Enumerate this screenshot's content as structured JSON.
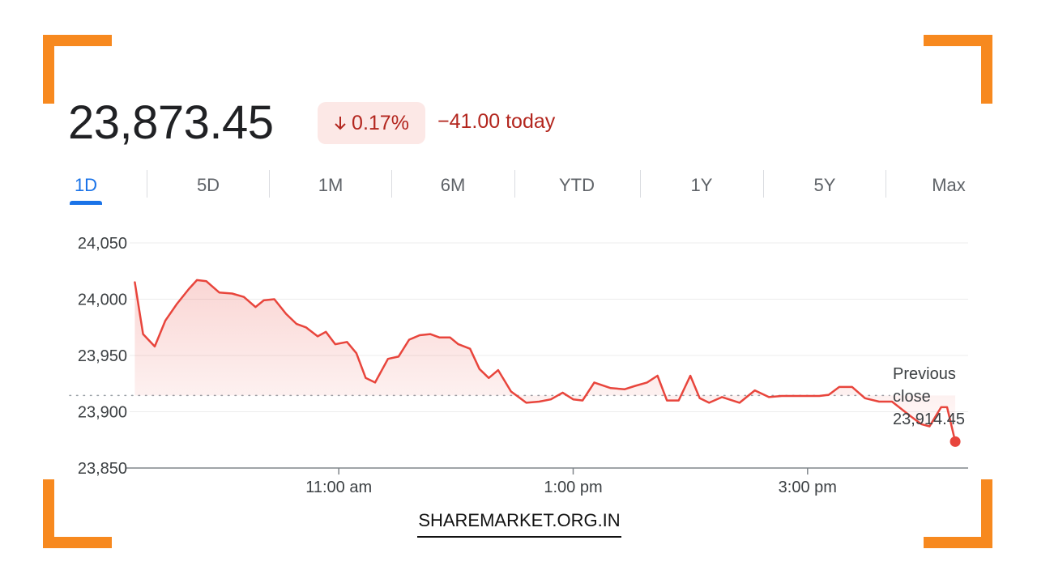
{
  "header": {
    "price": "23,873.45",
    "percent_change": "0.17%",
    "change_today": "−41.00 today"
  },
  "tabs": [
    "1D",
    "5D",
    "1M",
    "6M",
    "YTD",
    "1Y",
    "5Y",
    "Max"
  ],
  "active_tab": "1D",
  "previous_close": {
    "label_line1": "Previous",
    "label_line2": "close",
    "value": "23,914.45"
  },
  "watermark": "SHAREMARKET.ORG.IN",
  "colors": {
    "accent_orange": "#f7891f",
    "line_red": "#e8453c",
    "negative_text": "#b3261e",
    "badge_bg": "#fce8e6",
    "active_tab": "#1a73e8"
  },
  "icons": {
    "change_direction": "arrow-down-icon"
  },
  "chart_data": {
    "type": "line",
    "title": "",
    "xlabel": "",
    "ylabel": "",
    "ylim": [
      23850,
      24050
    ],
    "yticks": [
      {
        "value": 24050,
        "label": "24,050"
      },
      {
        "value": 24000,
        "label": "24,000"
      },
      {
        "value": 23950,
        "label": "23,950"
      },
      {
        "value": 23900,
        "label": "23,900"
      },
      {
        "value": 23850,
        "label": "23,850"
      }
    ],
    "xlim": [
      9.25,
      16.37
    ],
    "xticks": [
      {
        "value": 11,
        "label": "11:00 am"
      },
      {
        "value": 13,
        "label": "1:00 pm"
      },
      {
        "value": 15,
        "label": "3:00 pm"
      }
    ],
    "reference_line": {
      "value": 23914.45,
      "style": "dotted"
    },
    "grid": true,
    "series": [
      {
        "x": [
          9.26,
          9.33,
          9.43,
          9.52,
          9.62,
          9.72,
          9.79,
          9.87,
          9.98,
          10.09,
          10.19,
          10.29,
          10.36,
          10.45,
          10.55,
          10.64,
          10.72,
          10.82,
          10.89,
          10.97,
          11.07,
          11.15,
          11.23,
          11.31,
          11.42,
          11.51,
          11.6,
          11.69,
          11.78,
          11.86,
          11.95,
          12.02,
          12.12,
          12.2,
          12.28,
          12.36,
          12.47,
          12.6,
          12.71,
          12.81,
          12.91,
          13.0,
          13.08,
          13.18,
          13.32,
          13.44,
          13.53,
          13.63,
          13.72,
          13.8,
          13.9,
          14.0,
          14.08,
          14.16,
          14.27,
          14.42,
          14.55,
          14.67,
          14.78,
          14.91,
          15.02,
          15.1,
          15.18,
          15.27,
          15.38,
          15.49,
          15.61,
          15.72
        ],
        "y": [
          24015,
          23969,
          23958,
          23981,
          23996,
          24009,
          24017,
          24016,
          24006,
          24005,
          24002,
          23993,
          23999,
          24000,
          23987,
          23978,
          23975,
          23967,
          23971,
          23960,
          23962,
          23952,
          23930,
          23926,
          23947,
          23949,
          23964,
          23968,
          23969,
          23966,
          23966,
          23960,
          23956,
          23938,
          23930,
          23937,
          23918,
          23908,
          23909,
          23911,
          23917,
          23911,
          23910,
          23926,
          23921,
          23920,
          23923,
          23926,
          23932,
          23910,
          23910,
          23932,
          23912,
          23908,
          23913,
          23908,
          23919,
          23913,
          23914,
          23914,
          23914,
          23914,
          23915,
          23922,
          23922,
          23912,
          23909,
          23909
        ]
      }
    ],
    "last_point": {
      "x": 16.26,
      "y": 23873.45
    },
    "line_tail": {
      "x": [
        15.88,
        15.97,
        16.04,
        16.14,
        16.19,
        16.26
      ],
      "y": [
        23896,
        23889,
        23887,
        23904,
        23904,
        23873.45
      ]
    }
  }
}
